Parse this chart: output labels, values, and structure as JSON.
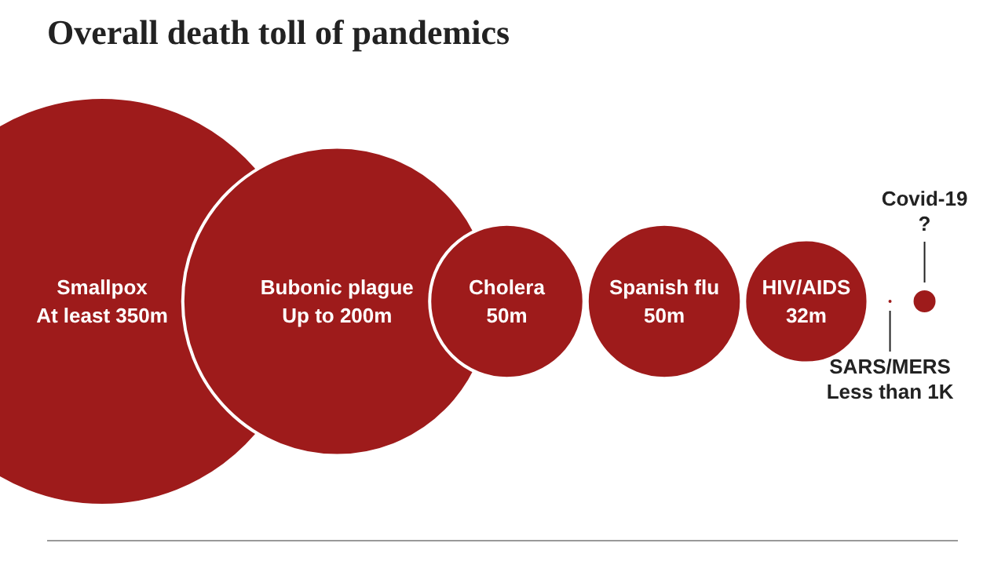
{
  "chart_data": {
    "type": "other",
    "title": "Overall death toll of pandemics",
    "categories": [
      "Smallpox",
      "Bubonic plague",
      "Cholera",
      "Spanish flu",
      "HIV/AIDS",
      "SARS/MERS",
      "Covid-19"
    ],
    "values": [
      350000000,
      200000000,
      50000000,
      50000000,
      32000000,
      1000,
      null
    ],
    "value_labels": [
      "At least 350m",
      "Up to 200m",
      "50m",
      "50m",
      "32m",
      "Less than 1K",
      "?"
    ],
    "color": "#9e1b1b"
  }
}
